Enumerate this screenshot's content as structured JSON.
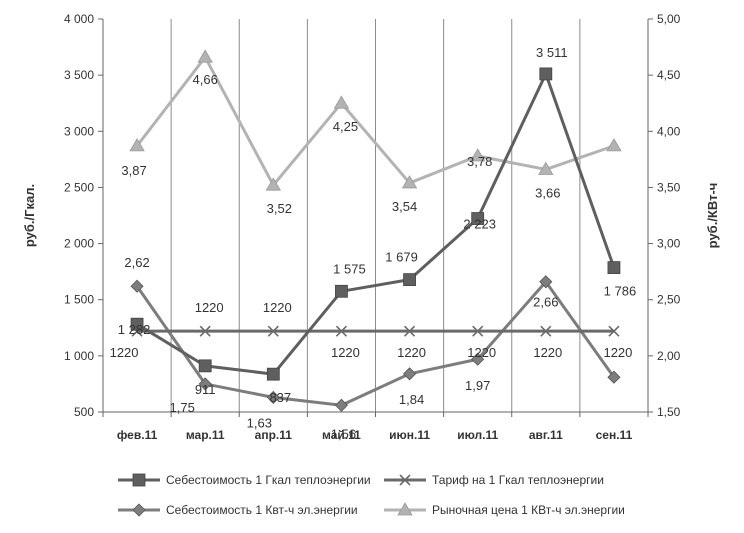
{
  "chart_data": {
    "type": "line",
    "categories": [
      "фев.11",
      "мар.11",
      "апр.11",
      "май.11",
      "июн.11",
      "июл.11",
      "авг.11",
      "сен.11"
    ],
    "ylabel": "руб./Гкал.",
    "y2label": "руб./КВт-ч",
    "ylim": [
      500,
      4000
    ],
    "y2lim": [
      1.5,
      5.0
    ],
    "yticks": [
      "500",
      "1 000",
      "1 500",
      "2 000",
      "2 500",
      "3 000",
      "3 500",
      "4 000"
    ],
    "y2ticks": [
      "1,50",
      "2,00",
      "2,50",
      "3,00",
      "3,50",
      "4,00",
      "4,50",
      "5,00"
    ],
    "grid": "vertical",
    "legend": "bottom",
    "series": [
      {
        "name": "Себестоимость 1 Гкал теплоэнергии",
        "axis": "left",
        "marker": "square",
        "color": "#5f5f5f",
        "values": [
          1282,
          911,
          837,
          1575,
          1679,
          2223,
          3511,
          1786
        ],
        "labels": [
          "1 282",
          "911",
          "837",
          "1 575",
          "1 679",
          "2 223",
          "3 511",
          "1 786"
        ]
      },
      {
        "name": "Тариф на 1 Гкал теплоэнергии",
        "axis": "left",
        "marker": "x",
        "color": "#6a6a6a",
        "values": [
          1220,
          1220,
          1220,
          1220,
          1220,
          1220,
          1220,
          1220
        ],
        "labels": [
          "1220",
          "1220",
          "1220",
          "1220",
          "1220",
          "1220",
          "1220",
          "1220"
        ]
      },
      {
        "name": "Себестоимость 1 Квт-ч эл.энергии",
        "axis": "right",
        "marker": "diamond",
        "color": "#7d7d7d",
        "values": [
          2.62,
          1.75,
          1.63,
          1.56,
          1.84,
          1.97,
          2.66,
          1.81
        ],
        "labels": [
          "2,62",
          "1,75",
          "1,63",
          "1,56",
          "1,84",
          "1,97",
          "2,66",
          ""
        ]
      },
      {
        "name": "Рыночная цена 1 КВт-ч эл.энергии",
        "axis": "right",
        "marker": "triangle",
        "color": "#b3b3b3",
        "values": [
          3.87,
          4.66,
          3.52,
          4.25,
          3.54,
          3.78,
          3.66,
          3.87
        ],
        "labels": [
          "3,87",
          "4,66",
          "3,52",
          "4,25",
          "3,54",
          "3,78",
          "3,66",
          ""
        ]
      }
    ]
  }
}
